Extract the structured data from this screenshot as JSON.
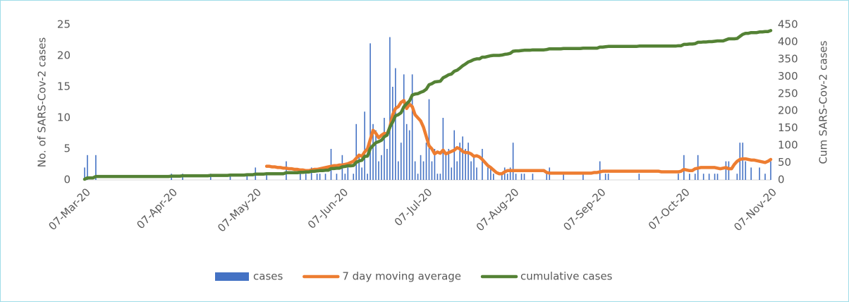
{
  "chart_data": {
    "type": "combo",
    "ylabel": "No. of SARS-Cov-2 cases",
    "y2label": "Cum SARS-Cov-2 cases",
    "ylim": [
      0,
      25
    ],
    "yticks": [
      0,
      5,
      10,
      15,
      20,
      25
    ],
    "y2lim": [
      0,
      450
    ],
    "y2ticks": [
      0,
      50,
      100,
      150,
      200,
      250,
      300,
      350,
      400,
      450
    ],
    "grid": false,
    "legend": "bottom",
    "categories": [
      "07-Mar-20",
      null,
      null,
      null,
      null,
      null,
      null,
      null,
      null,
      null,
      null,
      null,
      null,
      null,
      null,
      null,
      null,
      null,
      null,
      null,
      null,
      null,
      null,
      null,
      null,
      null,
      null,
      null,
      null,
      null,
      null,
      "07-Apr-20",
      null,
      null,
      null,
      null,
      null,
      null,
      null,
      null,
      null,
      null,
      null,
      null,
      null,
      null,
      null,
      null,
      null,
      null,
      null,
      null,
      null,
      null,
      null,
      null,
      null,
      null,
      null,
      null,
      null,
      "07-May-20",
      null,
      null,
      null,
      null,
      null,
      null,
      null,
      null,
      null,
      null,
      null,
      null,
      null,
      null,
      null,
      null,
      null,
      null,
      null,
      null,
      null,
      null,
      null,
      null,
      null,
      null,
      null,
      null,
      null,
      null,
      "07-Jun-20",
      null,
      null,
      null,
      null,
      null,
      null,
      null,
      null,
      null,
      null,
      null,
      null,
      null,
      null,
      null,
      null,
      null,
      null,
      null,
      null,
      null,
      null,
      null,
      null,
      null,
      null,
      null,
      null,
      null,
      "07-Jul-20",
      null,
      null,
      null,
      null,
      null,
      null,
      null,
      null,
      null,
      null,
      null,
      null,
      null,
      null,
      null,
      null,
      null,
      null,
      null,
      null,
      null,
      null,
      null,
      null,
      null,
      null,
      null,
      null,
      null,
      null,
      "07-Aug-20",
      null,
      null,
      null,
      null,
      null,
      null,
      null,
      null,
      null,
      null,
      null,
      null,
      null,
      null,
      null,
      null,
      null,
      null,
      null,
      null,
      null,
      null,
      null,
      null,
      null,
      null,
      null,
      null,
      null,
      null,
      "07-Sep-20",
      null,
      null,
      null,
      null,
      null,
      null,
      null,
      null,
      null,
      null,
      null,
      null,
      null,
      null,
      null,
      null,
      null,
      null,
      null,
      null,
      null,
      null,
      null,
      null,
      null,
      null,
      null,
      null,
      null,
      "07-Oct-20",
      null,
      null,
      null,
      null,
      null,
      null,
      null,
      null,
      null,
      null,
      null,
      null,
      null,
      null,
      null,
      null,
      null,
      null,
      null,
      null,
      null,
      null,
      null,
      null,
      null,
      null,
      null,
      null,
      null,
      null,
      "07-Nov-20"
    ],
    "series": [
      {
        "name": "cases",
        "type": "bar",
        "color": "#4472c4",
        "values": [
          2,
          4,
          0,
          0,
          4,
          0,
          0,
          0,
          0,
          0,
          0,
          0,
          0,
          0,
          0,
          0,
          0,
          0,
          0,
          0,
          0,
          0,
          0,
          0,
          0,
          0,
          0,
          0,
          0,
          0,
          0,
          1,
          0,
          0,
          0,
          1,
          0,
          0,
          0,
          0,
          0,
          0,
          0,
          0,
          0,
          1,
          0,
          0,
          0,
          0,
          0,
          0,
          1,
          0,
          0,
          0,
          0,
          0,
          1,
          0,
          0,
          2,
          0,
          0,
          0,
          1,
          0,
          0,
          0,
          0,
          0,
          0,
          3,
          0,
          0,
          0,
          0,
          1,
          0,
          1,
          0,
          2,
          0,
          1,
          1,
          0,
          1,
          0,
          5,
          0,
          1,
          0,
          4,
          1,
          2,
          0,
          1,
          9,
          4,
          2,
          11,
          1,
          22,
          9,
          8,
          3,
          4,
          10,
          5,
          23,
          15,
          18,
          3,
          6,
          17,
          9,
          8,
          17,
          3,
          1,
          4,
          3,
          6,
          13,
          3,
          5,
          1,
          1,
          10,
          4,
          5,
          2,
          8,
          3,
          6,
          7,
          5,
          6,
          3,
          4,
          2,
          0,
          5,
          0,
          2,
          2,
          1,
          0,
          0,
          1,
          2,
          1,
          2,
          6,
          1,
          0,
          1,
          1,
          0,
          0,
          1,
          0,
          0,
          0,
          0,
          1,
          2,
          0,
          0,
          0,
          0,
          1,
          0,
          0,
          0,
          0,
          0,
          0,
          1,
          0,
          0,
          0,
          0,
          0,
          3,
          0,
          1,
          1,
          0,
          0,
          0,
          0,
          0,
          0,
          0,
          0,
          0,
          0,
          1,
          0,
          0,
          0,
          0,
          0,
          0,
          0,
          0,
          0,
          0,
          0,
          0,
          0,
          1,
          0,
          4,
          0,
          1,
          0,
          1,
          4,
          0,
          1,
          0,
          1,
          0,
          1,
          1,
          0,
          0,
          3,
          3,
          0,
          0,
          1,
          6,
          6,
          3,
          0,
          2,
          0,
          0,
          2,
          0,
          1,
          0,
          3
        ]
      },
      {
        "name": "7 day moving average",
        "type": "line",
        "color": "#ed7d31",
        "values": [
          null,
          null,
          null,
          null,
          null,
          null,
          null,
          null,
          null,
          null,
          null,
          null,
          null,
          null,
          null,
          null,
          null,
          null,
          null,
          null,
          null,
          null,
          null,
          null,
          null,
          null,
          null,
          null,
          null,
          null,
          null,
          null,
          null,
          null,
          null,
          null,
          null,
          null,
          null,
          null,
          null,
          null,
          null,
          null,
          null,
          null,
          null,
          null,
          null,
          null,
          null,
          null,
          null,
          null,
          null,
          null,
          null,
          null,
          null,
          null,
          null,
          null,
          null,
          null,
          null,
          2.2,
          2.2,
          2.1,
          2.1,
          2.0,
          2.0,
          1.9,
          1.9,
          1.8,
          1.8,
          1.7,
          1.7,
          1.6,
          1.6,
          1.5,
          1.5,
          1.6,
          1.7,
          1.7,
          1.8,
          1.9,
          2.0,
          2.1,
          2.2,
          2.3,
          2.3,
          2.4,
          2.4,
          2.5,
          2.6,
          2.8,
          3.0,
          3.5,
          4.0,
          3.8,
          4.5,
          5.0,
          6.5,
          8.0,
          7.5,
          6.8,
          7.2,
          7.5,
          7.4,
          8.5,
          10.5,
          11.5,
          11.8,
          12.5,
          12.8,
          11.5,
          12.2,
          11.8,
          10.5,
          10.0,
          9.5,
          8.5,
          7.0,
          5.5,
          5.0,
          4.2,
          4.5,
          4.3,
          4.8,
          4.2,
          4.4,
          4.6,
          4.8,
          5.2,
          5.0,
          4.6,
          4.4,
          4.4,
          4.2,
          3.8,
          3.9,
          3.7,
          3.3,
          2.8,
          2.3,
          2.0,
          1.6,
          1.2,
          1.0,
          1.0,
          1.3,
          1.5,
          1.5,
          1.5,
          1.5,
          1.5,
          1.5,
          1.5,
          1.5,
          1.5,
          1.5,
          1.5,
          1.5,
          1.5,
          1.5,
          1.2,
          1.1,
          1.1,
          1.1,
          1.1,
          1.1,
          1.1,
          1.1,
          1.1,
          1.1,
          1.1,
          1.1,
          1.1,
          1.1,
          1.1,
          1.1,
          1.1,
          1.2,
          1.2,
          1.3,
          1.4,
          1.4,
          1.4,
          1.4,
          1.4,
          1.4,
          1.4,
          1.4,
          1.4,
          1.4,
          1.4,
          1.4,
          1.4,
          1.4,
          1.4,
          1.4,
          1.4,
          1.4,
          1.4,
          1.4,
          1.4,
          1.3,
          1.3,
          1.3,
          1.3,
          1.3,
          1.3,
          1.3,
          1.4,
          1.7,
          1.6,
          1.5,
          1.5,
          1.8,
          1.9,
          2.0,
          2.0,
          2.0,
          2.0,
          2.0,
          2.0,
          1.9,
          1.8,
          1.9,
          2.0,
          1.8,
          1.8,
          2.5,
          3.0,
          3.3,
          3.4,
          3.4,
          3.3,
          3.2,
          3.2,
          3.1,
          3.0,
          2.9,
          2.8,
          3.0,
          3.3
        ]
      },
      {
        "name": "cumulative cases",
        "type": "line",
        "axis": "y2",
        "color": "#548235",
        "values": [
          2,
          6,
          6,
          6,
          10,
          10,
          10,
          10,
          10,
          10,
          10,
          10,
          10,
          10,
          10,
          10,
          10,
          10,
          10,
          10,
          10,
          10,
          10,
          10,
          10,
          10,
          10,
          10,
          10,
          10,
          10,
          11,
          11,
          11,
          11,
          12,
          12,
          12,
          12,
          12,
          12,
          12,
          12,
          12,
          12,
          13,
          13,
          13,
          13,
          13,
          13,
          13,
          14,
          14,
          14,
          14,
          14,
          14,
          15,
          15,
          15,
          17,
          17,
          17,
          17,
          18,
          18,
          18,
          18,
          18,
          18,
          18,
          21,
          21,
          21,
          21,
          21,
          22,
          22,
          23,
          23,
          25,
          25,
          26,
          27,
          27,
          28,
          28,
          33,
          33,
          34,
          34,
          38,
          39,
          41,
          41,
          42,
          51,
          55,
          57,
          68,
          69,
          91,
          100,
          108,
          111,
          115,
          125,
          130,
          153,
          168,
          186,
          189,
          195,
          212,
          221,
          229,
          246,
          249,
          250,
          254,
          257,
          263,
          276,
          279,
          284,
          285,
          286,
          296,
          300,
          305,
          307,
          315,
          318,
          324,
          331,
          336,
          342,
          345,
          349,
          351,
          351,
          356,
          356,
          358,
          360,
          361,
          361,
          361,
          362,
          364,
          365,
          367,
          373,
          374,
          374,
          375,
          376,
          376,
          376,
          377,
          377,
          377,
          377,
          377,
          378,
          380,
          380,
          380,
          380,
          380,
          381,
          381,
          381,
          381,
          381,
          381,
          381,
          382,
          382,
          382,
          382,
          382,
          382,
          385,
          385,
          386,
          387,
          387,
          387,
          387,
          387,
          387,
          387,
          387,
          387,
          387,
          387,
          388,
          388,
          388,
          388,
          388,
          388,
          388,
          388,
          388,
          388,
          388,
          388,
          388,
          388,
          389,
          389,
          393,
          393,
          394,
          394,
          395,
          399,
          399,
          400,
          400,
          401,
          401,
          402,
          403,
          403,
          403,
          406,
          409,
          409,
          409,
          410,
          416,
          422,
          425,
          425,
          427,
          427,
          427,
          429,
          429,
          430,
          430,
          433
        ]
      }
    ]
  }
}
